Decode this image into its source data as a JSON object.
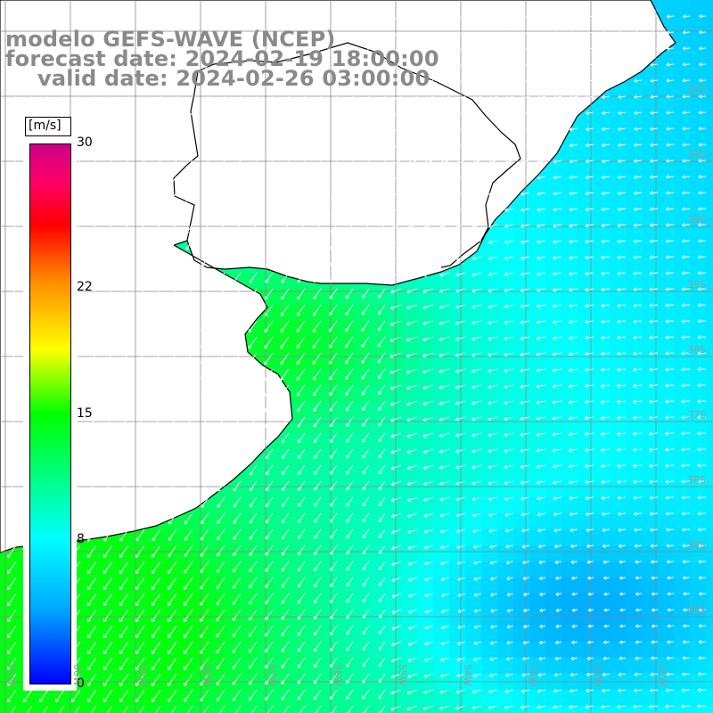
{
  "title": {
    "line1": "modelo GEFS-WAVE (NCEP)",
    "line2": "forecast date: 2024-02-19 18:00:00",
    "line3": "valid date: 2024-02-26 03:00:00"
  },
  "colorbar": {
    "unit": "[m/s]",
    "min": 0,
    "max": 30,
    "ticks": [
      {
        "value": 30,
        "label": "30"
      },
      {
        "value": 22,
        "label": "22"
      },
      {
        "value": 15,
        "label": "15"
      },
      {
        "value": 8,
        "label": "8"
      },
      {
        "value": 0,
        "label": "0"
      }
    ]
  },
  "map": {
    "lat_labels": [
      "32S",
      "33S",
      "34S",
      "35S",
      "36S",
      "37S",
      "38S",
      "39S",
      "40S"
    ],
    "lon_labels": [
      "61W",
      "60W",
      "59W",
      "58W",
      "57W",
      "56W",
      "55W",
      "54W",
      "53W",
      "52W",
      "51W"
    ],
    "colors": {
      "land": "#ffffff",
      "coast": "#000000",
      "grid": "#888888",
      "arrow": "#ffffff"
    }
  }
}
